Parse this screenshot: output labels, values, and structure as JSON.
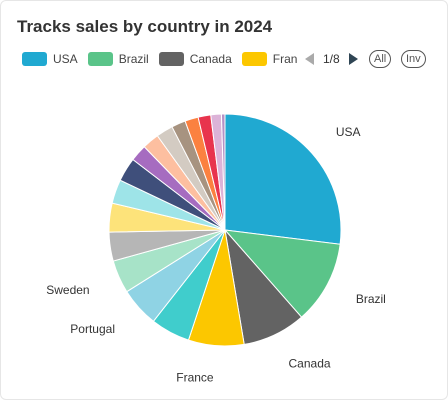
{
  "chart_data": {
    "type": "pie",
    "title": "Tracks sales by country in 2024",
    "legend": {
      "visible_items": [
        "USA",
        "Brazil",
        "Canada",
        "Fran"
      ],
      "page": "1/8",
      "all_label": "All",
      "inv_label": "Inv"
    },
    "slices": [
      {
        "name": "USA",
        "value": 27.5,
        "color": "#20a9d1",
        "label": "USA"
      },
      {
        "name": "Brazil",
        "value": 11.8,
        "color": "#5ac489",
        "label": "Brazil"
      },
      {
        "name": "Canada",
        "value": 9.0,
        "color": "#636363",
        "label": "Canada"
      },
      {
        "name": "France",
        "value": 7.9,
        "color": "#fcc700",
        "label": "France"
      },
      {
        "name": "",
        "value": 5.6,
        "color": "#40cdcc",
        "label": ""
      },
      {
        "name": "Portugal",
        "value": 5.6,
        "color": "#8fd3e4",
        "label": "Portugal"
      },
      {
        "name": "Sweden",
        "value": 4.7,
        "color": "#a7e3c8",
        "label": "Sweden"
      },
      {
        "name": "",
        "value": 4.1,
        "color": "#b6b6b6",
        "label": ""
      },
      {
        "name": "",
        "value": 4.1,
        "color": "#fde37a",
        "label": ""
      },
      {
        "name": "",
        "value": 3.4,
        "color": "#9ee4e8",
        "label": ""
      },
      {
        "name": "",
        "value": 3.4,
        "color": "#3f4f7b",
        "label": ""
      },
      {
        "name": "",
        "value": 2.4,
        "color": "#a66cc0",
        "label": ""
      },
      {
        "name": "",
        "value": 2.4,
        "color": "#fdbfa0",
        "label": ""
      },
      {
        "name": "",
        "value": 2.4,
        "color": "#d3cbc2",
        "label": ""
      },
      {
        "name": "",
        "value": 2.0,
        "color": "#a79380",
        "label": ""
      },
      {
        "name": "",
        "value": 1.9,
        "color": "#fb8140",
        "label": ""
      },
      {
        "name": "",
        "value": 1.8,
        "color": "#e8344d",
        "label": ""
      },
      {
        "name": "",
        "value": 1.5,
        "color": "#dcb3d8",
        "label": ""
      },
      {
        "name": "",
        "value": 0.5,
        "color": "#b593c6",
        "label": ""
      }
    ]
  }
}
